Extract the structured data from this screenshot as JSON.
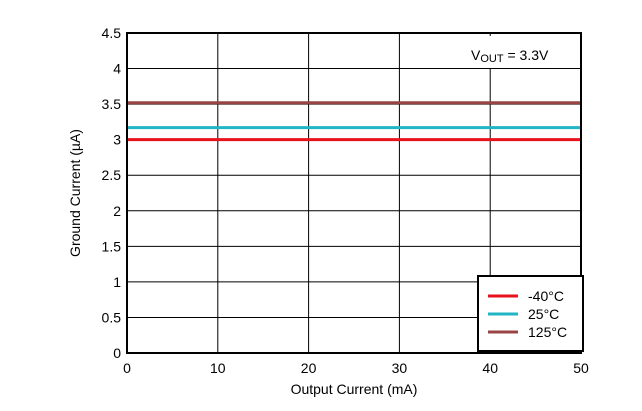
{
  "chart_data": {
    "type": "line",
    "xlabel": "Output Current (mA)",
    "ylabel": "Ground Current (µA)",
    "xlim": [
      0,
      50
    ],
    "ylim": [
      0,
      4.5
    ],
    "xticks": [
      0,
      10,
      20,
      30,
      40,
      50
    ],
    "yticks": [
      0,
      0.5,
      1,
      1.5,
      2,
      2.5,
      3,
      3.5,
      4,
      4.5
    ],
    "xtick_labels": [
      "0",
      "10",
      "20",
      "30",
      "40",
      "50"
    ],
    "ytick_labels": [
      "0",
      "0.5",
      "1",
      "1.5",
      "2",
      "2.5",
      "3",
      "3.5",
      "4",
      "4.5"
    ],
    "grid": true,
    "legend_position": "bottom-right",
    "annotation": {
      "main": "V",
      "sub": "OUT",
      "rest": " = 3.3V"
    },
    "series": [
      {
        "name": "-40°C",
        "color": "#e8121c",
        "x": [
          0,
          50
        ],
        "y": [
          3.0,
          3.0
        ]
      },
      {
        "name": "25°C",
        "color": "#22b5c6",
        "x": [
          0,
          50
        ],
        "y": [
          3.17,
          3.17
        ]
      },
      {
        "name": "125°C",
        "color": "#994444",
        "x": [
          0,
          50
        ],
        "y": [
          3.52,
          3.52
        ]
      }
    ]
  }
}
